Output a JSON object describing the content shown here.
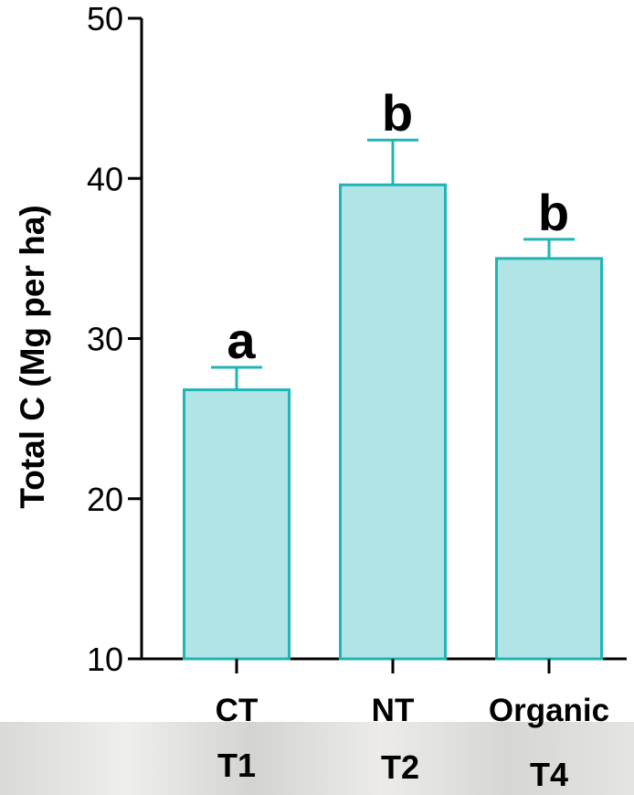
{
  "chart_data": {
    "type": "bar",
    "categories": [
      "CT",
      "NT",
      "Organic"
    ],
    "values": [
      26.8,
      39.6,
      35.0
    ],
    "errors": [
      1.4,
      2.8,
      1.2
    ],
    "significance_letters": [
      "a",
      "b",
      "b"
    ],
    "treatment_labels": [
      "T1",
      "T2",
      "T4"
    ],
    "ylabel": "Total C (Mg per ha)",
    "xlabel": "",
    "title": "",
    "ylim": [
      10,
      50
    ],
    "yticks": [
      10,
      20,
      30,
      40,
      50
    ],
    "grid": false,
    "colors": {
      "bar_fill": "#b1e5e5",
      "bar_stroke": "#20b4b4",
      "axis": "#000000"
    }
  }
}
